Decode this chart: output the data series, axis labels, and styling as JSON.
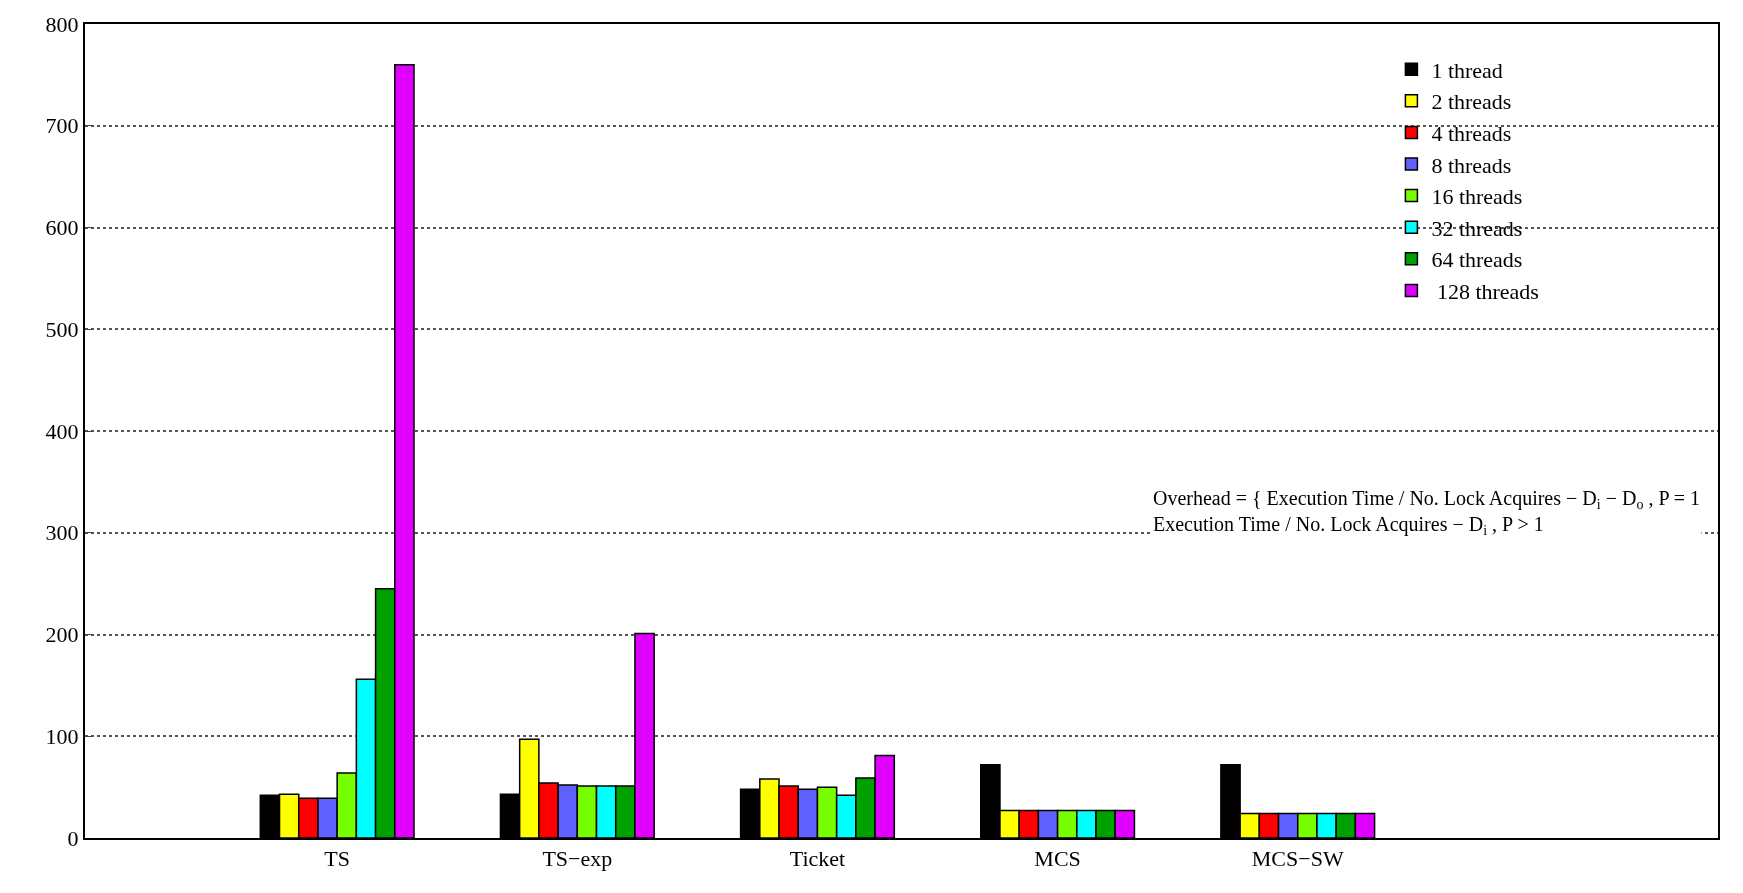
{
  "chart_data": {
    "type": "bar",
    "categories": [
      "TS",
      "TS−exp",
      "Ticket",
      "MCS",
      "MCS−SW"
    ],
    "series": [
      {
        "name": "1 thread",
        "color": "#000000",
        "values": [
          42,
          43,
          48,
          72,
          72
        ]
      },
      {
        "name": "2 threads",
        "color": "#ffff00",
        "values": [
          43,
          97,
          58,
          27,
          24
        ]
      },
      {
        "name": "4 threads",
        "color": "#ff0000",
        "values": [
          39,
          54,
          51,
          27,
          24
        ]
      },
      {
        "name": "8 threads",
        "color": "#6060ff",
        "values": [
          39,
          52,
          48,
          27,
          24
        ]
      },
      {
        "name": "16 threads",
        "color": "#77ff00",
        "values": [
          64,
          51,
          50,
          27,
          24
        ]
      },
      {
        "name": "32 threads",
        "color": "#00ffff",
        "values": [
          156,
          51,
          42,
          27,
          24
        ]
      },
      {
        "name": "64 threads",
        "color": "#00a000",
        "values": [
          245,
          51,
          59,
          27,
          24
        ]
      },
      {
        "name": " 128 threads",
        "color": "#e000ff",
        "values": [
          760,
          201,
          81,
          27,
          24
        ]
      }
    ],
    "ylim": [
      0,
      800
    ],
    "yticks": [
      0,
      100,
      200,
      300,
      400,
      500,
      600,
      700,
      800
    ],
    "grid": "y",
    "legend": "top right",
    "annotations": [
      "Overhead = { Execution Time / No. Lock Acquires − D$_{i}$ − D$_{o}$ , P = 1\nExecution Time / No. Lock Acquires − D$_{i}$ , P > 1"
    ]
  }
}
